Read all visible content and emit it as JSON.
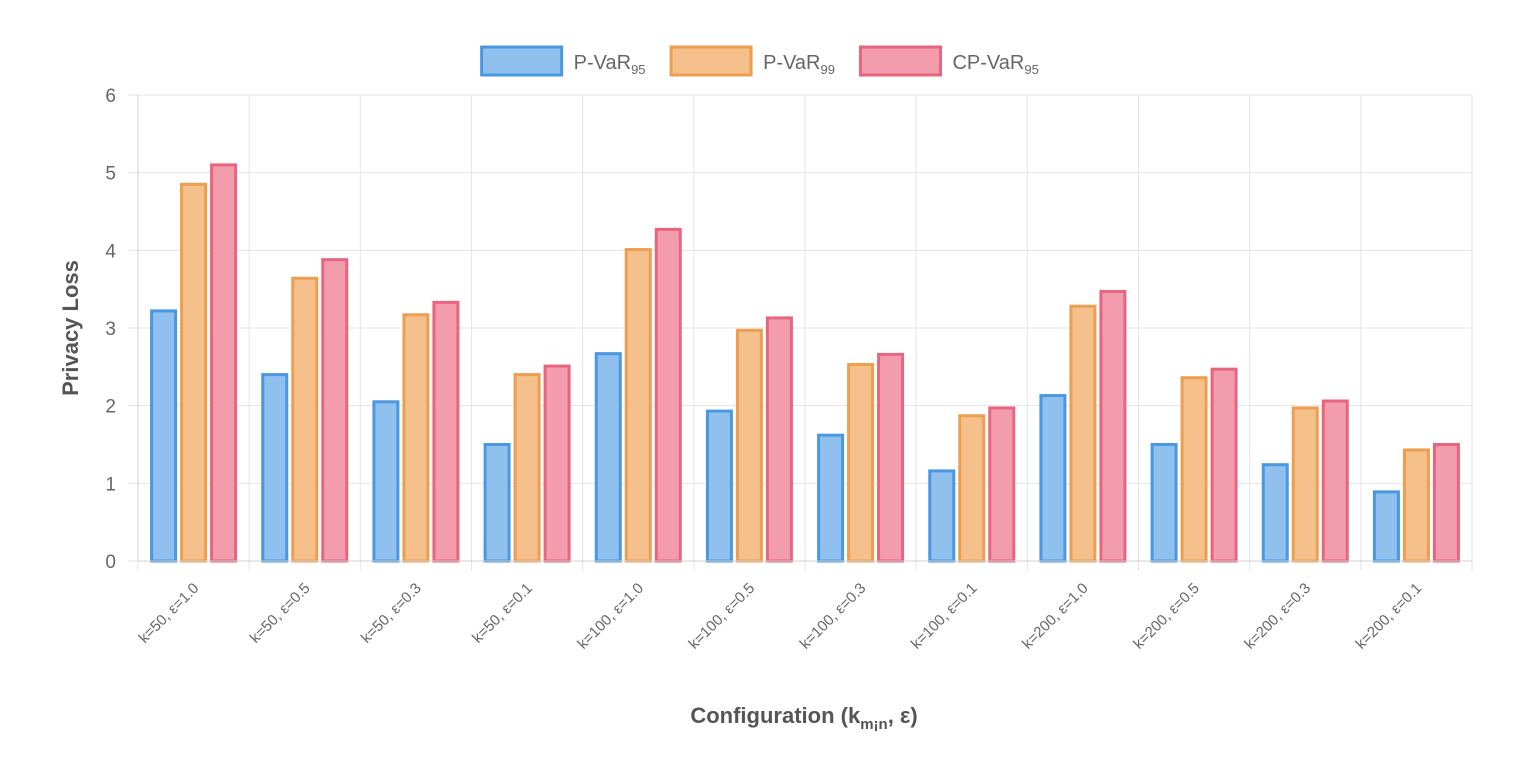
{
  "chart_data": {
    "type": "bar",
    "title": "",
    "xlabel": "Configuration (k",
    "xlabel_sub": "m¡n",
    "xlabel_tail": ", ε)",
    "ylabel": "Privacy Loss",
    "ylim": [
      0,
      6
    ],
    "yticks": [
      "0",
      "1",
      "2",
      "3",
      "4",
      "5",
      "6"
    ],
    "grid": true,
    "legend_position": "top-center",
    "categories": [
      "k=50, ε=1.0",
      "k=50, ε=0.5",
      "k=50, ε=0.3",
      "k=50, ε=0.1",
      "k=100, ε=1.0",
      "k=100, ε=0.5",
      "k=100, ε=0.3",
      "k=100, ε=0.1",
      "k=200, ε=1.0",
      "k=200, ε=0.5",
      "k=200, ε=0.3",
      "k=200, ε=0.1"
    ],
    "series": [
      {
        "name": "P-VaR",
        "sub": "95",
        "fill": "#8fc0ee",
        "stroke": "#4a98e0",
        "values": [
          3.22,
          2.4,
          2.05,
          1.5,
          2.67,
          1.93,
          1.62,
          1.16,
          2.13,
          1.5,
          1.24,
          0.89
        ]
      },
      {
        "name": "P-VaR",
        "sub": "99",
        "fill": "#f5c08c",
        "stroke": "#ee9e4f",
        "values": [
          4.85,
          3.64,
          3.17,
          2.4,
          4.01,
          2.97,
          2.53,
          1.87,
          3.28,
          2.36,
          1.97,
          1.43
        ]
      },
      {
        "name": "CP-VaR",
        "sub": "95",
        "fill": "#f39cae",
        "stroke": "#e8657f",
        "values": [
          5.1,
          3.88,
          3.33,
          2.51,
          4.27,
          3.13,
          2.66,
          1.97,
          3.47,
          2.47,
          2.06,
          1.5
        ]
      }
    ]
  }
}
